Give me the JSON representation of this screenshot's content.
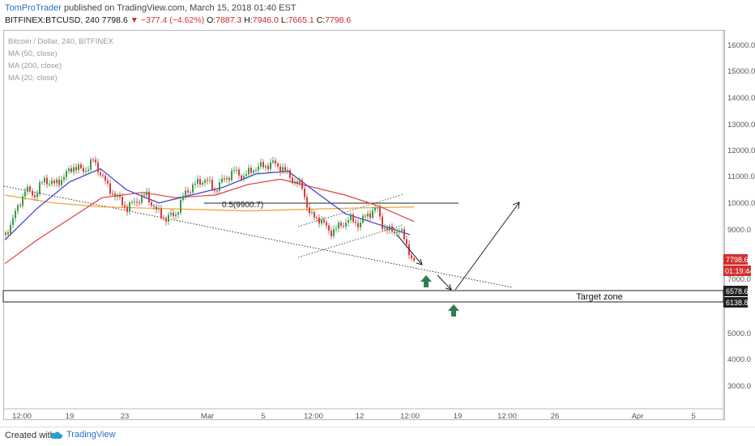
{
  "header": {
    "author": "TomProTrader",
    "published_text": "published on TradingView.com, March 15, 2018 01:40 EST",
    "symbol": "BITFINEX:BTCUSD, 240",
    "last": "7798.6",
    "change": "▼ −377.4 (−4.62%)",
    "o_label": "O:",
    "o_value": "7887.3",
    "h_label": "H:",
    "h_value": "7946.0",
    "l_label": "L:",
    "l_value": "7665.1",
    "c_label": "C:",
    "c_value": "7798.6"
  },
  "legend": {
    "title": "Bitcoin / Dollar, 240, BITFINEX",
    "ma1": "MA (50, close)",
    "ma2": "MA (200, close)",
    "ma3": "MA (20, close)"
  },
  "chart_data": {
    "type": "line",
    "title": "Bitcoin / Dollar, 240, BITFINEX",
    "price_axis_ticks": [
      "16000.0",
      "15000.0",
      "14000.0",
      "13000.0",
      "12000.0",
      "11000.0",
      "10000.0",
      "9000.0",
      "7000.0",
      "5000.0",
      "4000.0",
      "3000.0"
    ],
    "time_axis_ticks": [
      "12:00",
      "19",
      "23",
      "Mar",
      "5",
      "12:00",
      "12",
      "12:00",
      "19",
      "12:00",
      "26",
      "Apr",
      "5"
    ],
    "ylim": [
      2600,
      16800
    ],
    "price_path": [
      [
        0,
        8900
      ],
      [
        12,
        9700
      ],
      [
        24,
        10600
      ],
      [
        36,
        10400
      ],
      [
        48,
        11000
      ],
      [
        60,
        10800
      ],
      [
        72,
        11100
      ],
      [
        84,
        11500
      ],
      [
        96,
        11300
      ],
      [
        108,
        11700
      ],
      [
        118,
        11200
      ],
      [
        126,
        10700
      ],
      [
        138,
        10300
      ],
      [
        150,
        9900
      ],
      [
        162,
        10200
      ],
      [
        174,
        10400
      ],
      [
        186,
        9800
      ],
      [
        198,
        9500
      ],
      [
        210,
        9700
      ],
      [
        222,
        10500
      ],
      [
        234,
        10800
      ],
      [
        246,
        11000
      ],
      [
        258,
        10600
      ],
      [
        270,
        11000
      ],
      [
        282,
        11300
      ],
      [
        294,
        11100
      ],
      [
        306,
        11400
      ],
      [
        318,
        11500
      ],
      [
        330,
        11600
      ],
      [
        342,
        11400
      ],
      [
        354,
        11000
      ],
      [
        366,
        10700
      ],
      [
        376,
        9600
      ],
      [
        388,
        9500
      ],
      [
        400,
        9000
      ],
      [
        412,
        9200
      ],
      [
        424,
        9500
      ],
      [
        436,
        9300
      ],
      [
        448,
        9700
      ],
      [
        458,
        9900
      ],
      [
        466,
        9200
      ],
      [
        476,
        9000
      ],
      [
        486,
        9100
      ],
      [
        494,
        8600
      ],
      [
        504,
        7800
      ]
    ],
    "ma20": [
      [
        0,
        8700
      ],
      [
        40,
        9900
      ],
      [
        80,
        10900
      ],
      [
        118,
        11400
      ],
      [
        150,
        10600
      ],
      [
        190,
        10100
      ],
      [
        230,
        10400
      ],
      [
        270,
        10700
      ],
      [
        310,
        11200
      ],
      [
        350,
        11300
      ],
      [
        380,
        10600
      ],
      [
        420,
        9700
      ],
      [
        460,
        9300
      ],
      [
        500,
        8900
      ]
    ],
    "ma50": [
      [
        0,
        7800
      ],
      [
        40,
        8700
      ],
      [
        80,
        9500
      ],
      [
        120,
        10300
      ],
      [
        170,
        10500
      ],
      [
        210,
        10300
      ],
      [
        260,
        10400
      ],
      [
        300,
        10800
      ],
      [
        340,
        11000
      ],
      [
        380,
        10700
      ],
      [
        420,
        10400
      ],
      [
        460,
        10000
      ],
      [
        505,
        9400
      ]
    ],
    "ma200": [
      [
        0,
        10400
      ],
      [
        60,
        10100
      ],
      [
        120,
        9950
      ],
      [
        180,
        9900
      ],
      [
        240,
        9850
      ],
      [
        300,
        9800
      ],
      [
        360,
        9850
      ],
      [
        420,
        9900
      ],
      [
        505,
        9950
      ]
    ],
    "annotations": {
      "fib_label": "0.5(9900.7)",
      "target_label": "Target zone",
      "price_badges": [
        "7798.6",
        "01:19:44",
        "6578.6",
        "6138.8"
      ]
    },
    "colors": {
      "ma20": "#3b3bd1",
      "ma50": "#e23c3c",
      "ma200": "#f0a030",
      "up": "#3a9a4a",
      "down": "#d23c3c",
      "arrow": "#2e7d4f"
    }
  },
  "footer": {
    "created_with": "Created with",
    "brand": "TradingView"
  }
}
